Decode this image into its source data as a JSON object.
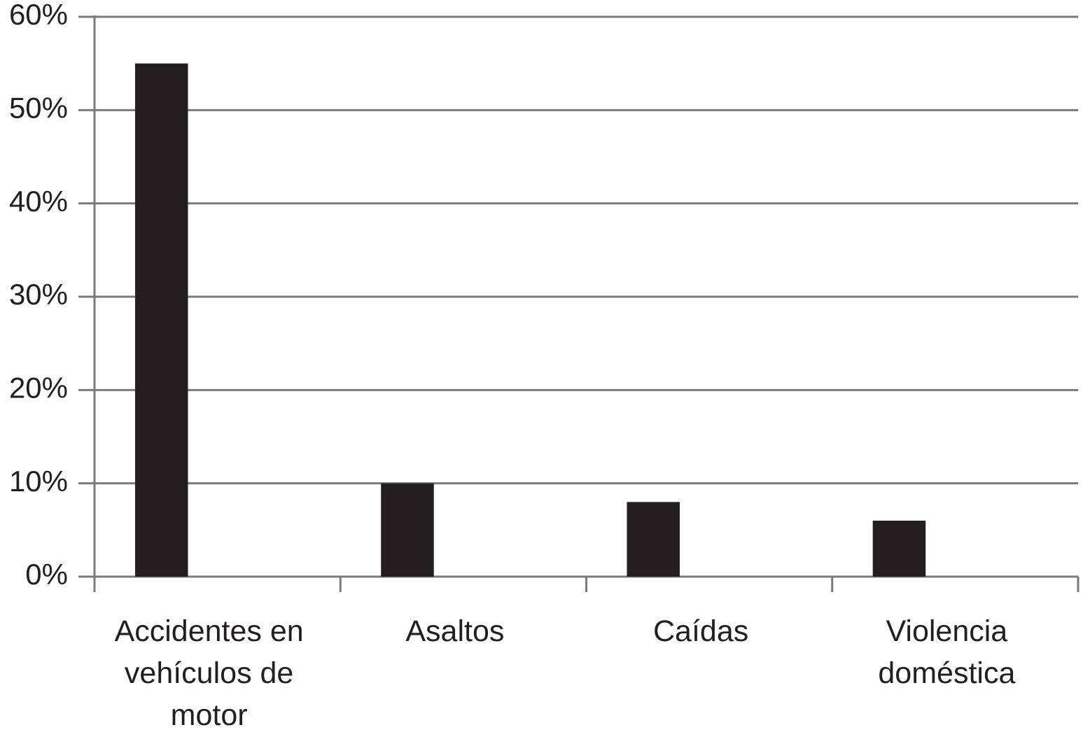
{
  "chart_data": {
    "type": "bar",
    "categories": [
      "Accidentes en vehículos de motor",
      "Asaltos",
      "Caídas",
      "Violencia doméstica"
    ],
    "values": [
      55,
      10,
      8,
      6
    ],
    "color": "#231f20",
    "ylim": [
      0,
      60
    ],
    "yticks": [
      {
        "value": 0,
        "label": "0%"
      },
      {
        "value": 10,
        "label": "10%"
      },
      {
        "value": 20,
        "label": "20%"
      },
      {
        "value": 30,
        "label": "30%"
      },
      {
        "value": 40,
        "label": "40%"
      },
      {
        "value": 50,
        "label": "50%"
      },
      {
        "value": 60,
        "label": "60%"
      }
    ],
    "grid": true
  }
}
